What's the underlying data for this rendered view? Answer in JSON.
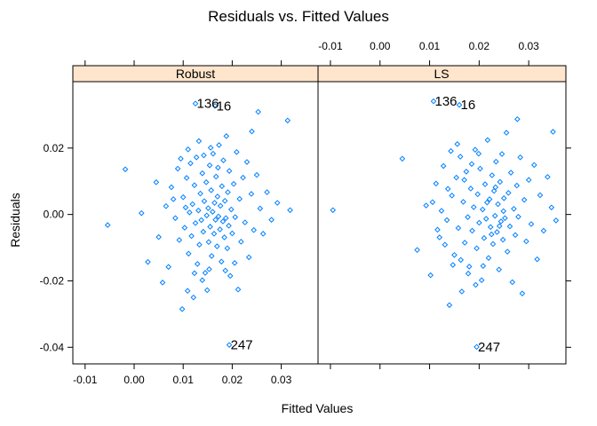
{
  "chart_data": {
    "type": "scatter",
    "title": "Residuals vs. Fitted Values",
    "xlabel": "Fitted Values",
    "ylabel": "Residuals",
    "xlim": [
      -0.0125,
      0.0375
    ],
    "ylim": [
      -0.045,
      0.04
    ],
    "x_ticks": [
      -0.01,
      0.0,
      0.01,
      0.02,
      0.03
    ],
    "x_tick_labels": [
      "-0.01",
      "0.00",
      "0.01",
      "0.02",
      "0.03"
    ],
    "y_ticks": [
      -0.04,
      -0.02,
      0.0,
      0.02
    ],
    "y_tick_labels": [
      "-0.04",
      "-0.02",
      "0.00",
      "0.02"
    ],
    "grid": false,
    "panels": [
      {
        "name": "Robust",
        "annotations": [
          {
            "text": "136",
            "x": 0.0125,
            "y": 0.0334
          },
          {
            "text": "16",
            "x": 0.0165,
            "y": 0.0327
          },
          {
            "text": "247",
            "x": 0.0194,
            "y": -0.0393
          }
        ],
        "points": [
          [
            0.0125,
            0.0334
          ],
          [
            0.0165,
            0.0327
          ],
          [
            0.0194,
            -0.0393
          ],
          [
            0.0253,
            0.0309
          ],
          [
            0.0313,
            0.0283
          ],
          [
            -0.0054,
            -0.0032
          ],
          [
            -0.0018,
            0.0136
          ],
          [
            0.0015,
            0.0004
          ],
          [
            0.0028,
            -0.0143
          ],
          [
            0.0045,
            0.0097
          ],
          [
            0.005,
            -0.0068
          ],
          [
            0.0058,
            -0.0205
          ],
          [
            0.0065,
            0.0025
          ],
          [
            0.007,
            -0.0158
          ],
          [
            0.0076,
            0.0082
          ],
          [
            0.008,
            0.0046
          ],
          [
            0.0084,
            -0.0011
          ],
          [
            0.0089,
            0.0138
          ],
          [
            0.0092,
            -0.0077
          ],
          [
            0.0095,
            0.0168
          ],
          [
            0.0098,
            -0.0285
          ],
          [
            0.01,
            0.0052
          ],
          [
            0.0103,
            -0.004
          ],
          [
            0.0105,
            0.0021
          ],
          [
            0.0107,
            0.011
          ],
          [
            0.0109,
            -0.023
          ],
          [
            0.0111,
            -0.0118
          ],
          [
            0.0113,
            0.0006
          ],
          [
            0.0115,
            0.0154
          ],
          [
            0.0117,
            -0.0065
          ],
          [
            0.0119,
            0.0031
          ],
          [
            0.0121,
            -0.025
          ],
          [
            0.0123,
            0.0088
          ],
          [
            0.0125,
            -0.0026
          ],
          [
            0.0127,
            0.0172
          ],
          [
            0.0129,
            -0.0149
          ],
          [
            0.0131,
            0.0012
          ],
          [
            0.0133,
            -0.0091
          ],
          [
            0.0135,
            0.0063
          ],
          [
            0.0137,
            -0.0017
          ],
          [
            0.0139,
            0.0124
          ],
          [
            0.0141,
            -0.0052
          ],
          [
            0.0143,
            0.004
          ],
          [
            0.0145,
            -0.0176
          ],
          [
            0.0147,
            0.0097
          ],
          [
            0.0148,
            -0.0003
          ],
          [
            0.0149,
            -0.0228
          ],
          [
            0.0151,
            0.0019
          ],
          [
            0.0152,
            -0.0083
          ],
          [
            0.0154,
            0.0148
          ],
          [
            0.0155,
            -0.0037
          ],
          [
            0.0157,
            0.0073
          ],
          [
            0.0158,
            -0.0125
          ],
          [
            0.016,
            0.0008
          ],
          [
            0.0161,
            0.0183
          ],
          [
            0.0163,
            -0.0058
          ],
          [
            0.0164,
            0.0035
          ],
          [
            0.0166,
            -0.0016
          ],
          [
            0.0167,
            0.0114
          ],
          [
            0.0169,
            -0.0096
          ],
          [
            0.017,
            0.0054
          ],
          [
            0.0172,
            -0.0006
          ],
          [
            0.0173,
            0.0209
          ],
          [
            0.0175,
            -0.0045
          ],
          [
            0.0176,
            0.0026
          ],
          [
            0.0178,
            -0.0142
          ],
          [
            0.0179,
            0.0085
          ],
          [
            0.0181,
            -0.0021
          ],
          [
            0.0182,
            0.0163
          ],
          [
            0.0184,
            -0.0069
          ],
          [
            0.0185,
            0.0041
          ],
          [
            0.0187,
            -0.0011
          ],
          [
            0.0188,
            0.0236
          ],
          [
            0.019,
            -0.0102
          ],
          [
            0.0191,
            0.0067
          ],
          [
            0.0193,
            -0.0034
          ],
          [
            0.0194,
            0.0131
          ],
          [
            0.0196,
            -0.0185
          ],
          [
            0.0198,
            0.0015
          ],
          [
            0.02,
            -0.0057
          ],
          [
            0.0203,
            0.0092
          ],
          [
            0.0206,
            -0.0008
          ],
          [
            0.0209,
            0.0188
          ],
          [
            0.0212,
            -0.0226
          ],
          [
            0.0215,
            0.0047
          ],
          [
            0.0218,
            -0.0082
          ],
          [
            0.0222,
            0.0111
          ],
          [
            0.0226,
            -0.0024
          ],
          [
            0.023,
            0.0158
          ],
          [
            0.0234,
            -0.0129
          ],
          [
            0.0239,
            0.0062
          ],
          [
            0.0244,
            -0.0047
          ],
          [
            0.025,
            0.0119
          ],
          [
            0.0257,
            0.0018
          ],
          [
            0.0263,
            -0.0058
          ],
          [
            0.0271,
            0.0067
          ],
          [
            0.028,
            -0.0016
          ],
          [
            0.0292,
            0.0035
          ],
          [
            0.0318,
            0.0013
          ],
          [
            0.024,
            0.025
          ],
          [
            0.011,
            0.0196
          ],
          [
            0.0132,
            0.0221
          ],
          [
            0.0142,
            0.0178
          ],
          [
            0.0156,
            0.0201
          ],
          [
            0.0171,
            0.0141
          ],
          [
            0.0123,
            -0.0177
          ],
          [
            0.0139,
            -0.0198
          ],
          [
            0.0153,
            -0.0165
          ],
          [
            0.0186,
            -0.0169
          ],
          [
            0.0205,
            -0.0146
          ]
        ]
      },
      {
        "name": "LS",
        "annotations": [
          {
            "text": "136",
            "x": 0.0108,
            "y": 0.0341
          },
          {
            "text": "16",
            "x": 0.016,
            "y": 0.033
          },
          {
            "text": "247",
            "x": 0.0195,
            "y": -0.0399
          }
        ],
        "points": [
          [
            0.0108,
            0.0341
          ],
          [
            0.016,
            0.033
          ],
          [
            0.0195,
            -0.0399
          ],
          [
            0.0277,
            0.0287
          ],
          [
            0.0349,
            0.0249
          ],
          [
            -0.0095,
            0.0013
          ],
          [
            0.0045,
            0.0168
          ],
          [
            0.0075,
            -0.0107
          ],
          [
            0.0093,
            0.0027
          ],
          [
            0.0102,
            -0.0183
          ],
          [
            0.0113,
            0.0093
          ],
          [
            0.012,
            -0.0069
          ],
          [
            0.0128,
            0.0146
          ],
          [
            0.0135,
            -0.0017
          ],
          [
            0.014,
            -0.0273
          ],
          [
            0.0145,
            0.0057
          ],
          [
            0.015,
            -0.0122
          ],
          [
            0.0154,
            0.0111
          ],
          [
            0.0158,
            -0.0041
          ],
          [
            0.0162,
            0.0174
          ],
          [
            0.0165,
            -0.0232
          ],
          [
            0.0168,
            0.0038
          ],
          [
            0.0171,
            -0.0085
          ],
          [
            0.0174,
            0.0129
          ],
          [
            0.0177,
            -0.0008
          ],
          [
            0.018,
            -0.0157
          ],
          [
            0.0183,
            0.0078
          ],
          [
            0.0186,
            -0.0049
          ],
          [
            0.0189,
            0.0022
          ],
          [
            0.0192,
            0.0195
          ],
          [
            0.0195,
            -0.0102
          ],
          [
            0.0197,
            0.0061
          ],
          [
            0.02,
            -0.0025
          ],
          [
            0.0202,
            0.0138
          ],
          [
            0.0205,
            -0.0198
          ],
          [
            0.0207,
            0.0015
          ],
          [
            0.021,
            -0.0071
          ],
          [
            0.0212,
            0.0091
          ],
          [
            0.0214,
            -0.0013
          ],
          [
            0.0217,
            0.0224
          ],
          [
            0.0219,
            -0.0131
          ],
          [
            0.0221,
            0.0046
          ],
          [
            0.0223,
            -0.0038
          ],
          [
            0.0226,
            0.0118
          ],
          [
            0.0228,
            -0.0089
          ],
          [
            0.023,
            0.0071
          ],
          [
            0.0232,
            -0.0004
          ],
          [
            0.0234,
            0.0159
          ],
          [
            0.0236,
            -0.0053
          ],
          [
            0.0238,
            0.0031
          ],
          [
            0.024,
            -0.0166
          ],
          [
            0.0242,
            0.0098
          ],
          [
            0.0244,
            -0.0021
          ],
          [
            0.0246,
            0.0182
          ],
          [
            0.0248,
            -0.0076
          ],
          [
            0.025,
            0.0049
          ],
          [
            0.0252,
            -0.0011
          ],
          [
            0.0255,
            0.0246
          ],
          [
            0.0257,
            -0.0112
          ],
          [
            0.0259,
            0.0065
          ],
          [
            0.0262,
            -0.0036
          ],
          [
            0.0264,
            0.0126
          ],
          [
            0.0267,
            -0.0204
          ],
          [
            0.027,
            0.0017
          ],
          [
            0.0273,
            -0.0062
          ],
          [
            0.0276,
            0.0087
          ],
          [
            0.0279,
            -0.0007
          ],
          [
            0.0283,
            0.0172
          ],
          [
            0.0287,
            -0.0238
          ],
          [
            0.0291,
            0.0044
          ],
          [
            0.0295,
            -0.0081
          ],
          [
            0.03,
            0.0104
          ],
          [
            0.0305,
            -0.0029
          ],
          [
            0.0311,
            0.0149
          ],
          [
            0.0317,
            -0.0135
          ],
          [
            0.0323,
            0.0058
          ],
          [
            0.033,
            -0.0049
          ],
          [
            0.0338,
            0.0113
          ],
          [
            0.0346,
            0.0021
          ],
          [
            0.0355,
            -0.0018
          ],
          [
            0.0106,
            0.0037
          ],
          [
            0.0116,
            -0.0046
          ],
          [
            0.0124,
            0.0011
          ],
          [
            0.0131,
            -0.0091
          ],
          [
            0.0137,
            0.0077
          ],
          [
            0.0143,
            0.0191
          ],
          [
            0.0147,
            -0.0152
          ],
          [
            0.0156,
            0.0212
          ],
          [
            0.0163,
            -0.0137
          ],
          [
            0.017,
            0.0104
          ],
          [
            0.0178,
            -0.0178
          ],
          [
            0.0185,
            0.0152
          ],
          [
            0.0193,
            -0.0212
          ],
          [
            0.0199,
            0.0183
          ],
          [
            0.0208,
            -0.0155
          ],
          [
            0.0216,
            0.0036
          ],
          [
            0.0225,
            -0.006
          ],
          [
            0.0233,
            0.0082
          ],
          [
            0.0241,
            -0.0035
          ],
          [
            0.0249,
            0.001
          ]
        ]
      }
    ]
  }
}
